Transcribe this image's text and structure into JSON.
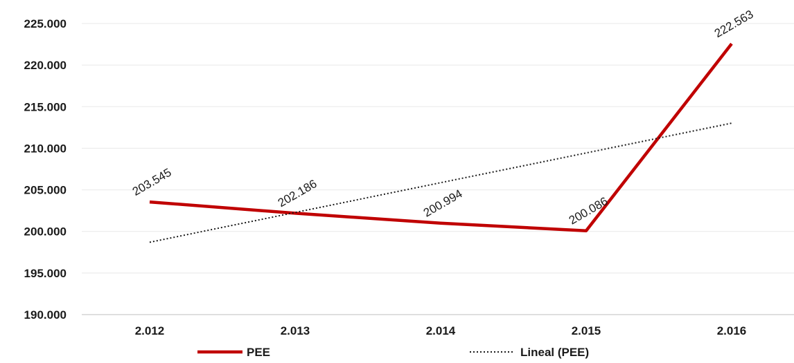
{
  "chart_data": {
    "type": "line",
    "categories": [
      "2.012",
      "2.013",
      "2.014",
      "2.015",
      "2.016"
    ],
    "ylim": [
      190000,
      225000
    ],
    "y_ticks": [
      190000,
      195000,
      200000,
      205000,
      210000,
      215000,
      220000,
      225000
    ],
    "y_tick_labels": [
      "190.000",
      "195.000",
      "200.000",
      "205.000",
      "210.000",
      "215.000",
      "220.000",
      "225.000"
    ],
    "grid": true,
    "legend_position": "bottom",
    "series": [
      {
        "name": "PEE",
        "values": [
          203545,
          202186,
          200994,
          200086,
          222563
        ],
        "data_labels": [
          "203.545",
          "202.186",
          "200.994",
          "200.086",
          "222.563"
        ],
        "color": "#c00000",
        "style": "solid"
      },
      {
        "name": "Lineal (PEE)",
        "values": [
          198700,
          202280,
          205860,
          209440,
          213020
        ],
        "color": "#1a1a1a",
        "style": "dotted"
      }
    ]
  }
}
